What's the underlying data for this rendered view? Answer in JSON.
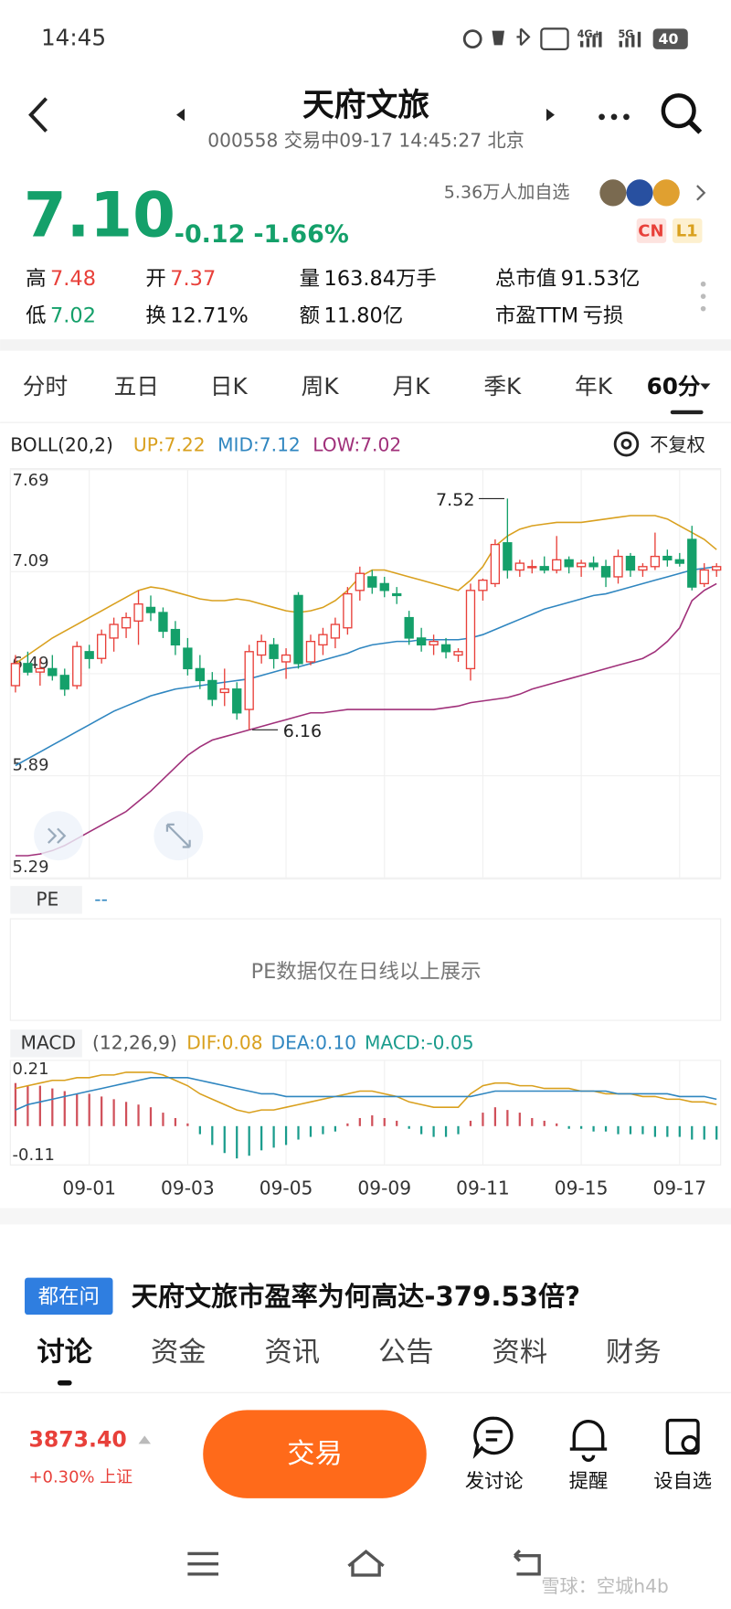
{
  "status": {
    "time": "14:45",
    "battery": "40"
  },
  "header": {
    "title": "天府文旅",
    "subtitle": "000558 交易中09-17 14:45:27 北京"
  },
  "quote": {
    "price": "7.10",
    "change": "-0.12",
    "percent": "-1.66%",
    "followers": "5.36万人加自选",
    "badges": [
      "CN",
      "L1"
    ]
  },
  "stats": [
    [
      {
        "label": "高",
        "value": "7.48"
      },
      {
        "label": "开",
        "value": "7.37"
      },
      {
        "label": "量",
        "value": "163.84万手"
      },
      {
        "label": "总市值",
        "value": "91.53亿"
      }
    ],
    [
      {
        "label": "低",
        "value": "7.02"
      },
      {
        "label": "换",
        "value": "12.71%"
      },
      {
        "label": "额",
        "value": "11.80亿"
      },
      {
        "label": "市盈TTM",
        "value": "亏损"
      }
    ]
  ],
  "period_tabs": [
    "分时",
    "五日",
    "日K",
    "周K",
    "月K",
    "季K",
    "年K",
    "60分"
  ],
  "adjust": "不复权",
  "chart_data": [
    {
      "type": "candlestick",
      "indicator": "BOLL(20,2)",
      "ylim": [
        5.29,
        7.69
      ],
      "yticks": [
        5.29,
        5.89,
        6.49,
        7.09,
        7.69
      ],
      "up_color": "#e8403a",
      "down_color": "#14a06a",
      "candles": [
        [
          6.42,
          6.6,
          6.38,
          6.55
        ],
        [
          6.55,
          6.62,
          6.48,
          6.5
        ],
        [
          6.5,
          6.58,
          6.42,
          6.52
        ],
        [
          6.52,
          6.6,
          6.45,
          6.48
        ],
        [
          6.48,
          6.52,
          6.36,
          6.4
        ],
        [
          6.42,
          6.68,
          6.4,
          6.65
        ],
        [
          6.62,
          6.66,
          6.52,
          6.58
        ],
        [
          6.58,
          6.75,
          6.55,
          6.72
        ],
        [
          6.7,
          6.82,
          6.62,
          6.78
        ],
        [
          6.76,
          6.85,
          6.7,
          6.82
        ],
        [
          6.8,
          6.98,
          6.66,
          6.9
        ],
        [
          6.88,
          6.95,
          6.8,
          6.85
        ],
        [
          6.85,
          6.88,
          6.7,
          6.74
        ],
        [
          6.75,
          6.8,
          6.6,
          6.66
        ],
        [
          6.64,
          6.7,
          6.48,
          6.52
        ],
        [
          6.52,
          6.6,
          6.4,
          6.45
        ],
        [
          6.45,
          6.5,
          6.3,
          6.34
        ],
        [
          6.38,
          6.52,
          6.3,
          6.4
        ],
        [
          6.4,
          6.44,
          6.22,
          6.26
        ],
        [
          6.28,
          6.66,
          6.16,
          6.62
        ],
        [
          6.6,
          6.72,
          6.55,
          6.68
        ],
        [
          6.66,
          6.7,
          6.52,
          6.58
        ],
        [
          6.56,
          6.64,
          6.46,
          6.6
        ],
        [
          6.95,
          6.97,
          6.52,
          6.55
        ],
        [
          6.56,
          6.72,
          6.54,
          6.68
        ],
        [
          6.66,
          6.76,
          6.6,
          6.72
        ],
        [
          6.7,
          6.82,
          6.64,
          6.78
        ],
        [
          6.76,
          7.0,
          6.72,
          6.96
        ],
        [
          6.98,
          7.12,
          6.92,
          7.08
        ],
        [
          7.06,
          7.1,
          6.96,
          7.0
        ],
        [
          7.02,
          7.06,
          6.94,
          6.98
        ],
        [
          6.96,
          7.0,
          6.9,
          6.95
        ],
        [
          6.82,
          6.86,
          6.66,
          6.7
        ],
        [
          6.7,
          6.76,
          6.62,
          6.66
        ],
        [
          6.66,
          6.72,
          6.6,
          6.68
        ],
        [
          6.66,
          6.7,
          6.58,
          6.62
        ],
        [
          6.6,
          6.64,
          6.56,
          6.62
        ],
        [
          6.52,
          7.02,
          6.45,
          6.98
        ],
        [
          6.98,
          7.05,
          6.92,
          7.04
        ],
        [
          7.02,
          7.28,
          7.0,
          7.25
        ],
        [
          7.26,
          7.52,
          7.05,
          7.1
        ],
        [
          7.1,
          7.16,
          7.06,
          7.14
        ],
        [
          7.12,
          7.16,
          7.08,
          7.12
        ],
        [
          7.12,
          7.18,
          7.08,
          7.1
        ],
        [
          7.1,
          7.3,
          7.08,
          7.16
        ],
        [
          7.16,
          7.18,
          7.08,
          7.12
        ],
        [
          7.12,
          7.16,
          7.06,
          7.14
        ],
        [
          7.14,
          7.18,
          7.1,
          7.12
        ],
        [
          7.12,
          7.16,
          7.0,
          7.06
        ],
        [
          7.06,
          7.22,
          7.02,
          7.18
        ],
        [
          7.18,
          7.2,
          7.06,
          7.1
        ],
        [
          7.1,
          7.14,
          7.06,
          7.12
        ],
        [
          7.12,
          7.32,
          7.1,
          7.18
        ],
        [
          7.18,
          7.22,
          7.12,
          7.16
        ],
        [
          7.16,
          7.2,
          7.12,
          7.14
        ],
        [
          7.28,
          7.36,
          6.98,
          7.0
        ],
        [
          7.02,
          7.14,
          7.0,
          7.1
        ],
        [
          7.1,
          7.14,
          7.06,
          7.12
        ]
      ],
      "series": [
        {
          "name": "UP:7.22",
          "color": "#d9a01e",
          "values": [
            6.55,
            6.6,
            6.65,
            6.7,
            6.74,
            6.78,
            6.82,
            6.86,
            6.9,
            6.94,
            6.98,
            7.0,
            6.99,
            6.97,
            6.95,
            6.93,
            6.92,
            6.92,
            6.93,
            6.92,
            6.9,
            6.88,
            6.86,
            6.85,
            6.86,
            6.88,
            6.92,
            6.98,
            7.06,
            7.1,
            7.1,
            7.08,
            7.06,
            7.04,
            7.02,
            7.0,
            6.98,
            7.04,
            7.12,
            7.24,
            7.3,
            7.34,
            7.36,
            7.37,
            7.38,
            7.38,
            7.38,
            7.39,
            7.4,
            7.41,
            7.42,
            7.42,
            7.42,
            7.4,
            7.36,
            7.32,
            7.28,
            7.22
          ]
        },
        {
          "name": "MID:7.12",
          "color": "#2f86c0",
          "values": [
            5.95,
            5.99,
            6.03,
            6.07,
            6.11,
            6.15,
            6.19,
            6.23,
            6.27,
            6.3,
            6.33,
            6.36,
            6.38,
            6.4,
            6.41,
            6.42,
            6.43,
            6.44,
            6.45,
            6.46,
            6.48,
            6.5,
            6.52,
            6.53,
            6.55,
            6.57,
            6.59,
            6.61,
            6.64,
            6.66,
            6.67,
            6.68,
            6.68,
            6.69,
            6.69,
            6.69,
            6.69,
            6.7,
            6.72,
            6.75,
            6.78,
            6.81,
            6.84,
            6.87,
            6.89,
            6.91,
            6.93,
            6.95,
            6.96,
            6.98,
            7.0,
            7.02,
            7.04,
            7.06,
            7.08,
            7.1,
            7.11,
            7.12
          ]
        },
        {
          "name": "LOW:7.02",
          "color": "#a0307a",
          "values": [
            5.42,
            5.42,
            5.43,
            5.45,
            5.48,
            5.52,
            5.56,
            5.6,
            5.64,
            5.68,
            5.74,
            5.8,
            5.87,
            5.94,
            6.01,
            6.06,
            6.1,
            6.12,
            6.14,
            6.16,
            6.18,
            6.2,
            6.22,
            6.24,
            6.26,
            6.26,
            6.27,
            6.28,
            6.28,
            6.28,
            6.28,
            6.28,
            6.28,
            6.28,
            6.28,
            6.29,
            6.3,
            6.32,
            6.33,
            6.34,
            6.35,
            6.37,
            6.4,
            6.42,
            6.44,
            6.46,
            6.48,
            6.5,
            6.52,
            6.54,
            6.56,
            6.58,
            6.62,
            6.68,
            6.76,
            6.92,
            6.98,
            7.02
          ]
        }
      ]
    },
    {
      "type": "macd",
      "indicator": "MACD",
      "params": "(12,26,9)",
      "ylim": [
        -0.11,
        0.21
      ],
      "yticks": [
        -0.11,
        0.21
      ],
      "categories": [
        null,
        null,
        null,
        null,
        null,
        null,
        "09-01",
        null,
        null,
        null,
        null,
        null,
        null,
        null,
        "09-03",
        null,
        null,
        null,
        null,
        null,
        null,
        null,
        "09-05",
        null,
        null,
        null,
        null,
        null,
        null,
        null,
        "09-09",
        null,
        null,
        null,
        null,
        null,
        null,
        null,
        "09-11",
        null,
        null,
        null,
        null,
        null,
        null,
        null,
        "09-15",
        null,
        null,
        null,
        null,
        null,
        null,
        null,
        "09-17",
        null,
        null,
        null
      ],
      "series": [
        {
          "name": "DIF:0.08",
          "color": "#d9a01e",
          "values": [
            0.14,
            0.15,
            0.16,
            0.17,
            0.17,
            0.18,
            0.18,
            0.19,
            0.19,
            0.2,
            0.2,
            0.2,
            0.19,
            0.17,
            0.15,
            0.12,
            0.1,
            0.08,
            0.06,
            0.05,
            0.06,
            0.06,
            0.07,
            0.08,
            0.09,
            0.1,
            0.11,
            0.12,
            0.13,
            0.13,
            0.12,
            0.11,
            0.09,
            0.08,
            0.07,
            0.07,
            0.07,
            0.12,
            0.15,
            0.16,
            0.16,
            0.15,
            0.15,
            0.14,
            0.14,
            0.14,
            0.13,
            0.13,
            0.12,
            0.12,
            0.12,
            0.11,
            0.11,
            0.1,
            0.1,
            0.09,
            0.09,
            0.08
          ]
        },
        {
          "name": "DEA:0.10",
          "color": "#2f86c0",
          "values": [
            0.06,
            0.08,
            0.09,
            0.1,
            0.11,
            0.12,
            0.13,
            0.14,
            0.15,
            0.16,
            0.17,
            0.18,
            0.18,
            0.18,
            0.18,
            0.17,
            0.16,
            0.15,
            0.14,
            0.13,
            0.12,
            0.12,
            0.11,
            0.11,
            0.11,
            0.11,
            0.11,
            0.11,
            0.11,
            0.11,
            0.11,
            0.11,
            0.11,
            0.11,
            0.11,
            0.11,
            0.11,
            0.11,
            0.12,
            0.13,
            0.13,
            0.13,
            0.13,
            0.13,
            0.13,
            0.13,
            0.13,
            0.13,
            0.13,
            0.12,
            0.12,
            0.12,
            0.12,
            0.12,
            0.11,
            0.11,
            0.11,
            0.1
          ]
        },
        {
          "name": "MACD:-0.05",
          "color": "#1a9c8c",
          "up_color": "#d0505a",
          "down_color": "#1a9c8c",
          "values": [
            0.16,
            0.15,
            0.15,
            0.14,
            0.13,
            0.12,
            0.12,
            0.11,
            0.1,
            0.09,
            0.08,
            0.07,
            0.05,
            0.03,
            0.01,
            -0.03,
            -0.07,
            -0.1,
            -0.12,
            -0.11,
            -0.09,
            -0.08,
            -0.07,
            -0.05,
            -0.04,
            -0.03,
            -0.02,
            0.01,
            0.03,
            0.04,
            0.03,
            0.02,
            -0.01,
            -0.03,
            -0.04,
            -0.04,
            -0.03,
            0.02,
            0.05,
            0.07,
            0.06,
            0.05,
            0.03,
            0.02,
            0.01,
            -0.01,
            -0.01,
            -0.02,
            -0.02,
            -0.03,
            -0.03,
            -0.03,
            -0.04,
            -0.04,
            -0.04,
            -0.05,
            -0.05,
            -0.05
          ]
        }
      ]
    }
  ],
  "pe": {
    "label": "PE",
    "value": "--",
    "note": "PE数据仅在日线以上展示"
  },
  "question": {
    "badge": "都在问",
    "text": "天府文旅市盈率为何高达-379.53倍?"
  },
  "content_tabs": [
    "讨论",
    "资金",
    "资讯",
    "公告",
    "资料",
    "财务"
  ],
  "footer": {
    "index_value": "3873.40",
    "index_change": "+0.30% 上证",
    "trade_button": "交易",
    "actions": [
      "发讨论",
      "提醒",
      "设自选"
    ]
  },
  "watermark": "雪球：空城h4b"
}
